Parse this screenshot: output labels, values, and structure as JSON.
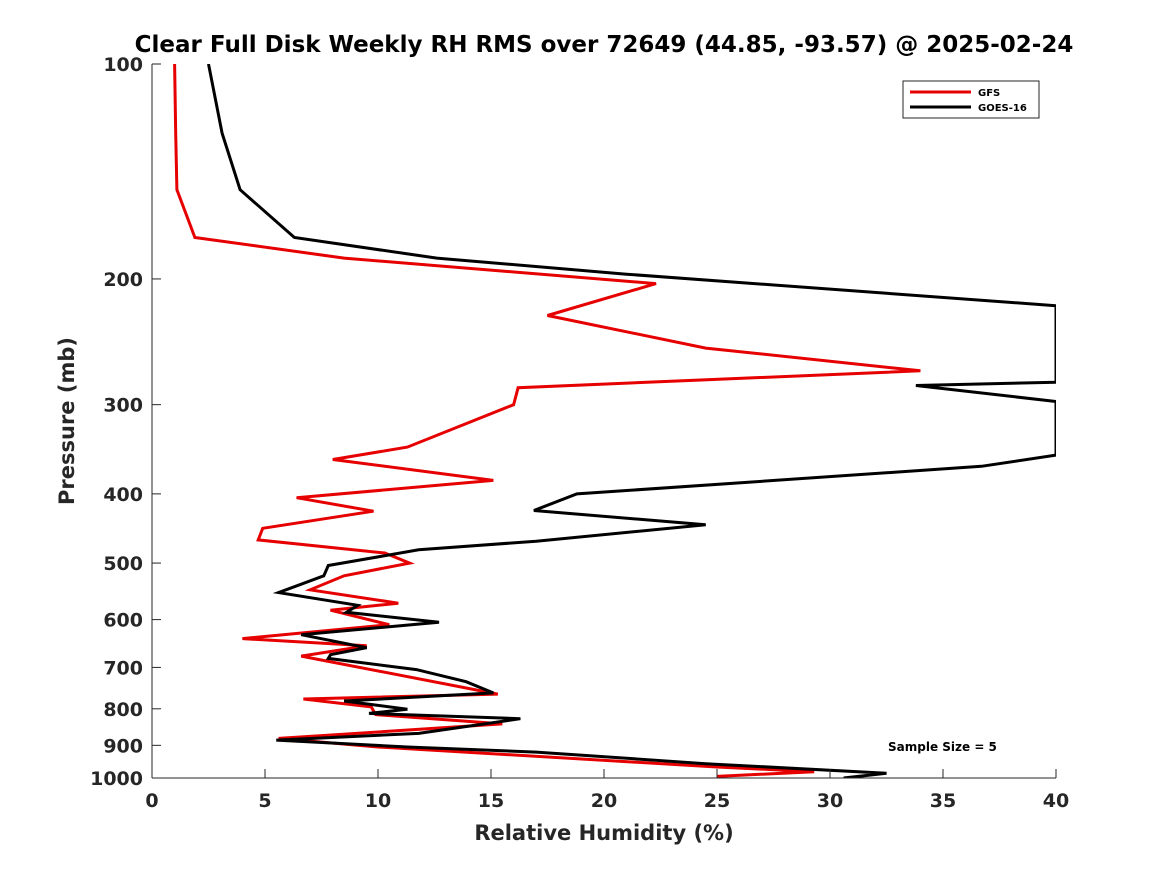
{
  "chart_data": {
    "type": "line",
    "title": "Clear Full Disk Weekly RH RMS over 72649 (44.85, -93.57) @ 2025-02-24",
    "xlabel": "Relative Humidity (%)",
    "ylabel": "Pressure (mb)",
    "xlim": [
      0,
      40
    ],
    "ylim": [
      100,
      1000
    ],
    "y_scale": "log",
    "y_reversed": true,
    "x_ticks": [
      0,
      5,
      10,
      15,
      20,
      25,
      30,
      35,
      40
    ],
    "y_ticks": [
      100,
      200,
      300,
      400,
      500,
      600,
      700,
      800,
      900,
      1000
    ],
    "grid": false,
    "legend_position": "top-right",
    "annotation": "Sample Size = 5",
    "series": [
      {
        "name": "GFS",
        "color": "#e60000",
        "points": [
          [
            1.0,
            100
          ],
          [
            1.05,
            125
          ],
          [
            1.1,
            150
          ],
          [
            1.9,
            175
          ],
          [
            8.5,
            187
          ],
          [
            22.3,
            203
          ],
          [
            17.5,
            225
          ],
          [
            24.5,
            250
          ],
          [
            34.0,
            269
          ],
          [
            16.2,
            284
          ],
          [
            16.0,
            300
          ],
          [
            11.3,
            344
          ],
          [
            8.0,
            358
          ],
          [
            15.1,
            383
          ],
          [
            6.4,
            405
          ],
          [
            9.8,
            423
          ],
          [
            4.9,
            447
          ],
          [
            4.7,
            464
          ],
          [
            10.3,
            484
          ],
          [
            11.4,
            500
          ],
          [
            8.5,
            521
          ],
          [
            7.0,
            545
          ],
          [
            10.9,
            569
          ],
          [
            7.9,
            582
          ],
          [
            10.5,
            610
          ],
          [
            4.0,
            638
          ],
          [
            9.5,
            653
          ],
          [
            6.6,
            675
          ],
          [
            15.3,
            763
          ],
          [
            6.7,
            775
          ],
          [
            9.7,
            795
          ],
          [
            9.9,
            815
          ],
          [
            15.5,
            840
          ],
          [
            5.6,
            880
          ],
          [
            10.0,
            905
          ],
          [
            25.0,
            965
          ],
          [
            29.3,
            980
          ],
          [
            25.0,
            995
          ]
        ]
      },
      {
        "name": "GOES-16",
        "color": "#000000",
        "points": [
          [
            2.5,
            100
          ],
          [
            3.1,
            125
          ],
          [
            3.9,
            150
          ],
          [
            6.3,
            175
          ],
          [
            12.6,
            187
          ],
          [
            21.0,
            197
          ],
          [
            40.0,
            218
          ],
          [
            40.0,
            279
          ],
          [
            33.8,
            282
          ],
          [
            40.0,
            297
          ],
          [
            40.0,
            353
          ],
          [
            36.7,
            366
          ],
          [
            18.8,
            400
          ],
          [
            16.9,
            422
          ],
          [
            24.5,
            442
          ],
          [
            17.0,
            466
          ],
          [
            11.8,
            479
          ],
          [
            7.8,
            504
          ],
          [
            7.6,
            521
          ],
          [
            5.6,
            550
          ],
          [
            9.1,
            573
          ],
          [
            8.6,
            586
          ],
          [
            12.7,
            605
          ],
          [
            6.6,
            630
          ],
          [
            9.5,
            657
          ],
          [
            7.9,
            672
          ],
          [
            7.8,
            680
          ],
          [
            11.7,
            705
          ],
          [
            13.9,
            733
          ],
          [
            15.1,
            760
          ],
          [
            8.5,
            780
          ],
          [
            11.3,
            801
          ],
          [
            9.6,
            812
          ],
          [
            16.3,
            826
          ],
          [
            11.8,
            866
          ],
          [
            5.5,
            885
          ],
          [
            11.3,
            905
          ],
          [
            17.0,
            920
          ],
          [
            24.5,
            955
          ],
          [
            32.5,
            985
          ],
          [
            30.6,
            1000
          ]
        ]
      }
    ]
  }
}
